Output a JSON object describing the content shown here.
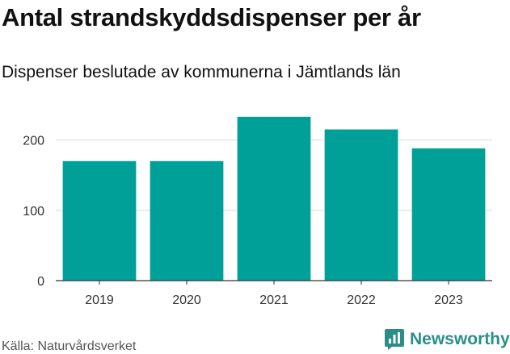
{
  "page": {
    "title": "Antal strandskyddsdispenser per år",
    "subtitle": "Dispenser beslutade av kommunerna i Jämtlands län",
    "source": "Källa: Naturvårdsverket",
    "brand": "Newsworthy",
    "brand_icon": "bar-chart-logo-icon"
  },
  "colors": {
    "bar": "#00a098",
    "grid": "#d9d9d9",
    "brand": "#2b8f88"
  },
  "chart_data": {
    "type": "bar",
    "title": "Antal strandskyddsdispenser per år",
    "subtitle": "Dispenser beslutade av kommunerna i Jämtlands län",
    "categories": [
      "2019",
      "2020",
      "2021",
      "2022",
      "2023"
    ],
    "values": [
      170,
      170,
      233,
      215,
      188
    ],
    "xlabel": "",
    "ylabel": "",
    "ylim": [
      0,
      250
    ],
    "yticks": [
      0,
      100,
      200
    ],
    "grid": true,
    "legend": "none"
  }
}
